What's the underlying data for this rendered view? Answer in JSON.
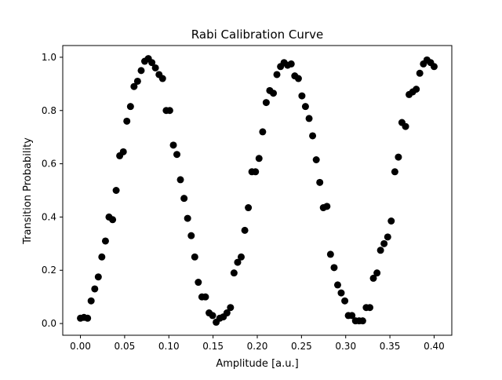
{
  "chart_data": {
    "type": "scatter",
    "title": "Rabi Calibration Curve",
    "x_label": "Amplitude [a.u.]",
    "y_label": "Transition Probability",
    "color": "#000000",
    "grid": false,
    "xlim": [
      -0.02,
      0.42
    ],
    "ylim": [
      -0.044,
      1.044
    ],
    "xticks": [
      {
        "value": 0,
        "label": "0.00"
      },
      {
        "value": 0.05,
        "label": "0.05"
      },
      {
        "value": 0.1,
        "label": "0.10"
      },
      {
        "value": 0.15,
        "label": "0.15"
      },
      {
        "value": 0.2,
        "label": "0.20"
      },
      {
        "value": 0.25,
        "label": "0.25"
      },
      {
        "value": 0.3,
        "label": "0.30"
      },
      {
        "value": 0.35,
        "label": "0.35"
      },
      {
        "value": 0.4,
        "label": "0.40"
      }
    ],
    "yticks": [
      {
        "value": 0,
        "label": "0.0"
      },
      {
        "value": 0.2,
        "label": "0.2"
      },
      {
        "value": 0.4,
        "label": "0.4"
      },
      {
        "value": 0.6,
        "label": "0.6"
      },
      {
        "value": 0.8,
        "label": "0.8"
      },
      {
        "value": 1,
        "label": "1.0"
      }
    ],
    "x": [
      0,
      0.004,
      0.0081,
      0.0121,
      0.0162,
      0.0202,
      0.0242,
      0.0283,
      0.0323,
      0.0364,
      0.0404,
      0.0444,
      0.0485,
      0.0525,
      0.0566,
      0.0606,
      0.0646,
      0.0687,
      0.0727,
      0.0768,
      0.0808,
      0.0848,
      0.0889,
      0.0929,
      0.097,
      0.101,
      0.1051,
      0.1091,
      0.1131,
      0.1172,
      0.1212,
      0.1253,
      0.1293,
      0.1333,
      0.1374,
      0.1414,
      0.1455,
      0.1495,
      0.1535,
      0.1576,
      0.1616,
      0.1657,
      0.1697,
      0.1737,
      0.1778,
      0.1818,
      0.1859,
      0.1899,
      0.1939,
      0.198,
      0.202,
      0.2061,
      0.2101,
      0.2141,
      0.2182,
      0.2222,
      0.2263,
      0.2303,
      0.2343,
      0.2384,
      0.2424,
      0.2465,
      0.2505,
      0.2545,
      0.2586,
      0.2626,
      0.2667,
      0.2707,
      0.2747,
      0.2788,
      0.2828,
      0.2869,
      0.2909,
      0.2949,
      0.299,
      0.303,
      0.3071,
      0.3111,
      0.3152,
      0.3192,
      0.3232,
      0.3273,
      0.3313,
      0.3354,
      0.3394,
      0.3434,
      0.3475,
      0.3515,
      0.3556,
      0.3596,
      0.3636,
      0.3677,
      0.3717,
      0.3758,
      0.3798,
      0.3838,
      0.3879,
      0.3919,
      0.396,
      0.4
    ],
    "values": [
      0.02,
      0.023,
      0.02,
      0.085,
      0.13,
      0.175,
      0.25,
      0.31,
      0.4,
      0.39,
      0.5,
      0.63,
      0.645,
      0.76,
      0.815,
      0.89,
      0.91,
      0.95,
      0.985,
      0.995,
      0.98,
      0.96,
      0.935,
      0.92,
      0.8,
      0.8,
      0.67,
      0.635,
      0.54,
      0.47,
      0.395,
      0.33,
      0.25,
      0.155,
      0.1,
      0.1,
      0.04,
      0.03,
      0.005,
      0.02,
      0.025,
      0.04,
      0.06,
      0.19,
      0.23,
      0.25,
      0.35,
      0.435,
      0.57,
      0.57,
      0.62,
      0.72,
      0.83,
      0.875,
      0.865,
      0.935,
      0.965,
      0.98,
      0.97,
      0.975,
      0.93,
      0.92,
      0.855,
      0.815,
      0.77,
      0.705,
      0.615,
      0.53,
      0.435,
      0.44,
      0.26,
      0.21,
      0.145,
      0.115,
      0.085,
      0.03,
      0.03,
      0.01,
      0.01,
      0.01,
      0.06,
      0.06,
      0.17,
      0.19,
      0.275,
      0.3,
      0.325,
      0.385,
      0.57,
      0.625,
      0.755,
      0.74,
      0.86,
      0.87,
      0.88,
      0.94,
      0.975,
      0.99,
      0.98,
      0.965
    ]
  }
}
